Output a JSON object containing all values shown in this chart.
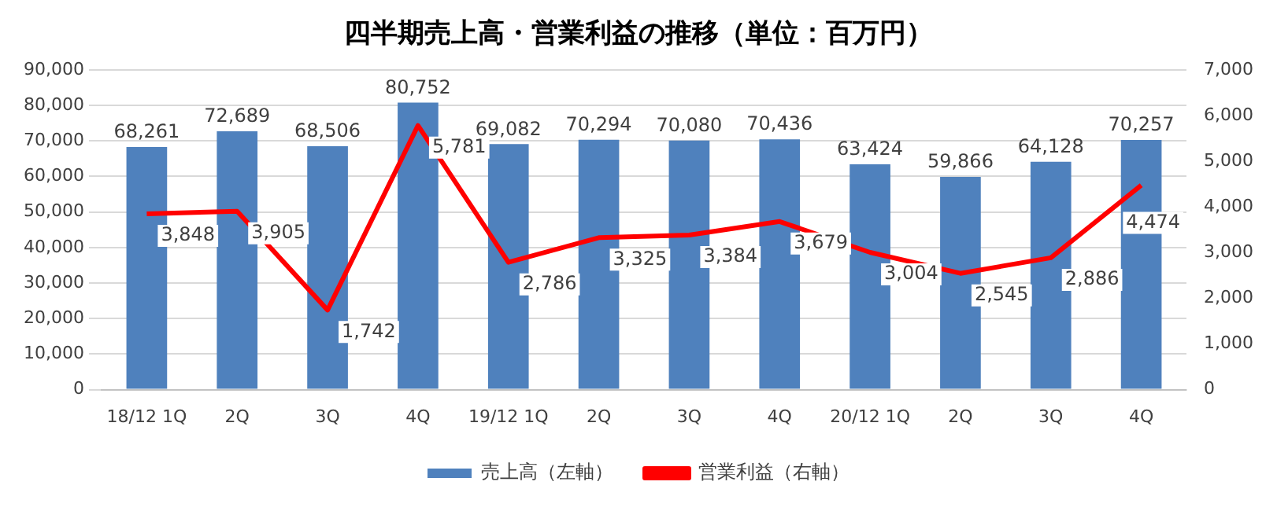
{
  "chart_data": {
    "type": "bar",
    "title": "四半期売上高・営業利益の推移（単位：百万円）",
    "categories": [
      "18/12 1Q",
      "2Q",
      "3Q",
      "4Q",
      "19/12 1Q",
      "2Q",
      "3Q",
      "4Q",
      "20/12 1Q",
      "2Q",
      "3Q",
      "4Q"
    ],
    "series": [
      {
        "name": "売上高（左軸）",
        "color": "#4f81bd",
        "values": [
          68261,
          72689,
          68506,
          80752,
          69082,
          70294,
          70080,
          70436,
          63424,
          59866,
          64128,
          70257
        ],
        "value_labels": [
          "68,261",
          "72,689",
          "68,506",
          "80,752",
          "69,082",
          "70,294",
          "70,080",
          "70,436",
          "63,424",
          "59,866",
          "64,128",
          "70,257"
        ]
      },
      {
        "name": "営業利益（右軸）",
        "type": "line",
        "axis": "y2",
        "color": "#ff0000",
        "values": [
          3848,
          3905,
          1742,
          5781,
          2786,
          3325,
          3384,
          3679,
          3004,
          2545,
          2886,
          4474
        ],
        "value_labels": [
          "3,848",
          "3,905",
          "1,742",
          "5,781",
          "2,786",
          "3,325",
          "3,384",
          "3,679",
          "3,004",
          "2,545",
          "2,886",
          "4,474"
        ]
      }
    ],
    "ylim": [
      0,
      90000
    ],
    "yticks": [
      0,
      {
        "value": 10000,
        "label": "10,000"
      },
      {
        "value": 20000,
        "label": "20,000"
      },
      {
        "value": 30000,
        "label": "30,000"
      },
      {
        "value": 40000,
        "label": "40,000"
      },
      {
        "value": 50000,
        "label": "50,000"
      },
      {
        "value": 60000,
        "label": "60,000"
      },
      {
        "value": 70000,
        "label": "70,000"
      },
      {
        "value": 80000,
        "label": "80,000"
      },
      {
        "value": 90000,
        "label": "90,000"
      }
    ],
    "y2lim": [
      0,
      7000
    ],
    "y2ticks": [
      0,
      {
        "value": 1000,
        "label": "1,000"
      },
      {
        "value": 2000,
        "label": "2,000"
      },
      {
        "value": 3000,
        "label": "3,000"
      },
      {
        "value": 4000,
        "label": "4,000"
      },
      {
        "value": 5000,
        "label": "5,000"
      },
      {
        "value": 6000,
        "label": "6,000"
      },
      {
        "value": 7000,
        "label": "7,000"
      }
    ],
    "grid": "y",
    "legend": "bottom",
    "marker": "none",
    "line_style": "solid"
  }
}
